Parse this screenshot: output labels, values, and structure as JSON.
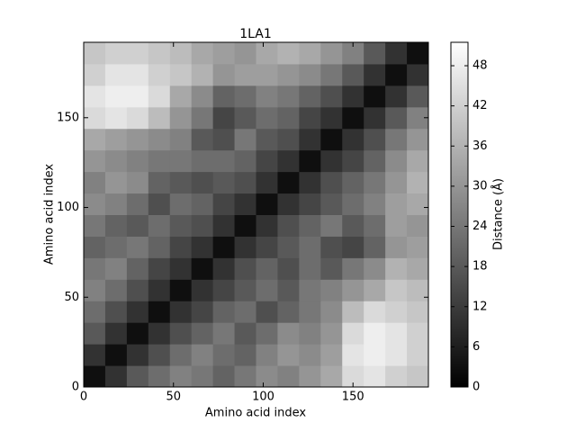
{
  "chart_data": {
    "type": "heatmap",
    "title": "1LA1",
    "xlabel": "Amino acid index",
    "ylabel": "Amino acid index",
    "colorbar_label": "Distance (Å)",
    "colormap": "gray",
    "xbins": [
      0,
      12,
      24,
      36,
      48,
      60,
      72,
      84,
      96,
      108,
      120,
      132,
      144,
      156,
      168,
      180,
      192
    ],
    "ybins": [
      0,
      12,
      24,
      36,
      48,
      60,
      72,
      84,
      96,
      108,
      120,
      132,
      144,
      156,
      168,
      180,
      192
    ],
    "values": [
      [
        3,
        10,
        18,
        22,
        26,
        24,
        20,
        24,
        28,
        26,
        30,
        34,
        44,
        46,
        42,
        40
      ],
      [
        10,
        3,
        10,
        16,
        22,
        26,
        22,
        20,
        26,
        30,
        28,
        32,
        46,
        48,
        46,
        42
      ],
      [
        18,
        10,
        3,
        10,
        16,
        20,
        24,
        18,
        22,
        28,
        26,
        30,
        44,
        48,
        46,
        42
      ],
      [
        22,
        16,
        10,
        3,
        10,
        14,
        20,
        22,
        16,
        20,
        24,
        28,
        38,
        44,
        42,
        40
      ],
      [
        26,
        22,
        16,
        10,
        3,
        10,
        14,
        18,
        22,
        18,
        24,
        26,
        30,
        34,
        40,
        38
      ],
      [
        24,
        26,
        20,
        14,
        10,
        3,
        10,
        16,
        20,
        16,
        22,
        18,
        24,
        28,
        36,
        34
      ],
      [
        20,
        22,
        24,
        20,
        14,
        10,
        3,
        10,
        14,
        18,
        22,
        16,
        14,
        20,
        30,
        32
      ],
      [
        24,
        20,
        18,
        22,
        18,
        16,
        10,
        3,
        10,
        16,
        20,
        24,
        18,
        22,
        32,
        30
      ],
      [
        28,
        26,
        22,
        16,
        22,
        20,
        14,
        10,
        3,
        10,
        14,
        18,
        22,
        26,
        32,
        34
      ],
      [
        26,
        30,
        28,
        20,
        18,
        16,
        18,
        16,
        10,
        3,
        10,
        16,
        20,
        24,
        30,
        36
      ],
      [
        30,
        28,
        26,
        24,
        24,
        22,
        22,
        20,
        14,
        10,
        3,
        10,
        14,
        20,
        28,
        34
      ],
      [
        34,
        32,
        30,
        28,
        26,
        18,
        16,
        24,
        18,
        16,
        10,
        3,
        10,
        16,
        24,
        30
      ],
      [
        44,
        46,
        44,
        38,
        30,
        24,
        14,
        18,
        22,
        20,
        14,
        10,
        3,
        10,
        18,
        26
      ],
      [
        46,
        48,
        48,
        44,
        34,
        28,
        20,
        22,
        26,
        24,
        20,
        16,
        10,
        3,
        10,
        18
      ],
      [
        42,
        46,
        46,
        42,
        40,
        36,
        30,
        32,
        32,
        30,
        28,
        24,
        18,
        10,
        3,
        10
      ],
      [
        40,
        42,
        42,
        40,
        38,
        34,
        32,
        30,
        34,
        36,
        34,
        30,
        26,
        18,
        10,
        3
      ]
    ],
    "xlim": [
      0,
      192
    ],
    "ylim": [
      0,
      192
    ],
    "xticks": [
      0,
      50,
      100,
      150
    ],
    "yticks": [
      0,
      50,
      100,
      150
    ],
    "clim": [
      0,
      51.5
    ],
    "colorbar_ticks": [
      0,
      6,
      12,
      18,
      24,
      30,
      36,
      42,
      48
    ]
  }
}
